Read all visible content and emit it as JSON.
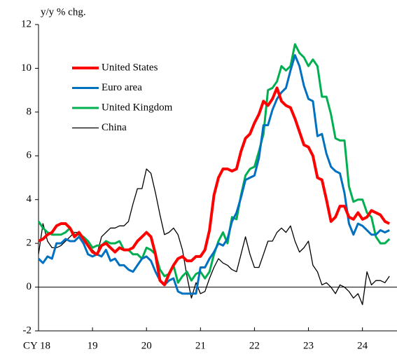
{
  "chart_data": {
    "type": "line",
    "subtitle": "y/y % chg.",
    "x": [
      18,
      18.083,
      18.167,
      18.25,
      18.333,
      18.417,
      18.5,
      18.583,
      18.667,
      18.75,
      18.833,
      18.917,
      19,
      19.083,
      19.167,
      19.25,
      19.333,
      19.417,
      19.5,
      19.583,
      19.667,
      19.75,
      19.833,
      19.917,
      20,
      20.083,
      20.167,
      20.25,
      20.333,
      20.417,
      20.5,
      20.583,
      20.667,
      20.75,
      20.833,
      20.917,
      21,
      21.083,
      21.167,
      21.25,
      21.333,
      21.417,
      21.5,
      21.583,
      21.667,
      21.75,
      21.833,
      21.917,
      22,
      22.083,
      22.167,
      22.25,
      22.333,
      22.417,
      22.5,
      22.583,
      22.667,
      22.75,
      22.833,
      22.917,
      23,
      23.083,
      23.167,
      23.25,
      23.333,
      23.417,
      23.5,
      23.583,
      23.667,
      23.75,
      23.833,
      23.917,
      24,
      24.083,
      24.167,
      24.25,
      24.333,
      24.417,
      24.5
    ],
    "series": [
      {
        "name": "United States",
        "color": "#ff0000",
        "values": [
          2.1,
          2.2,
          2.4,
          2.5,
          2.8,
          2.9,
          2.9,
          2.7,
          2.3,
          2.5,
          2.2,
          1.9,
          1.6,
          1.5,
          1.9,
          2.0,
          1.8,
          1.6,
          1.8,
          1.7,
          1.7,
          1.8,
          2.1,
          2.3,
          2.5,
          2.3,
          1.5,
          0.3,
          0.1,
          0.6,
          1.0,
          1.3,
          1.4,
          1.2,
          1.2,
          1.4,
          1.4,
          1.7,
          2.6,
          4.2,
          5.0,
          5.4,
          5.4,
          5.3,
          5.4,
          6.2,
          6.8,
          7.0,
          7.5,
          7.9,
          8.5,
          8.3,
          8.6,
          9.1,
          8.5,
          8.3,
          8.2,
          7.7,
          7.1,
          6.5,
          6.4,
          6.0,
          5.0,
          4.9,
          4.0,
          3.0,
          3.2,
          3.7,
          3.7,
          3.2,
          3.1,
          3.4,
          3.1,
          3.2,
          3.5,
          3.4,
          3.3,
          3.0,
          2.9
        ]
      },
      {
        "name": "Euro area",
        "color": "#0070c0",
        "values": [
          1.3,
          1.1,
          1.4,
          1.3,
          2.0,
          2.0,
          2.2,
          2.1,
          2.1,
          2.3,
          2.0,
          1.5,
          1.4,
          1.5,
          1.4,
          1.7,
          1.2,
          1.3,
          1.0,
          1.0,
          0.8,
          0.7,
          1.0,
          1.3,
          1.4,
          1.2,
          0.7,
          0.3,
          0.1,
          0.3,
          0.4,
          -0.2,
          -0.3,
          -0.3,
          -0.3,
          -0.3,
          0.9,
          0.9,
          1.3,
          1.6,
          2.0,
          1.9,
          2.2,
          3.0,
          3.4,
          4.1,
          4.9,
          5.0,
          5.1,
          5.9,
          7.4,
          7.4,
          8.1,
          8.6,
          8.9,
          9.1,
          9.9,
          10.6,
          10.1,
          9.2,
          8.6,
          8.5,
          6.9,
          7.0,
          6.1,
          5.5,
          5.3,
          5.2,
          4.3,
          2.9,
          2.4,
          2.9,
          2.8,
          2.6,
          2.4,
          2.4,
          2.6,
          2.5,
          2.6
        ]
      },
      {
        "name": "United Kingdom",
        "color": "#00b050",
        "values": [
          3.0,
          2.7,
          2.5,
          2.4,
          2.4,
          2.4,
          2.5,
          2.7,
          2.4,
          2.4,
          2.3,
          2.1,
          1.8,
          1.9,
          1.9,
          2.1,
          2.0,
          2.0,
          2.1,
          1.7,
          1.7,
          1.5,
          1.5,
          1.3,
          1.8,
          1.7,
          1.5,
          0.8,
          0.5,
          0.6,
          1.0,
          0.2,
          0.5,
          0.7,
          0.3,
          0.6,
          0.7,
          0.4,
          0.7,
          1.5,
          2.1,
          2.5,
          2.0,
          3.2,
          3.1,
          4.2,
          5.1,
          5.4,
          5.5,
          6.2,
          7.0,
          9.0,
          9.1,
          9.4,
          10.1,
          9.9,
          10.1,
          11.1,
          10.7,
          10.5,
          10.1,
          10.4,
          10.1,
          8.7,
          8.7,
          7.9,
          6.8,
          6.7,
          6.7,
          4.6,
          3.9,
          4.0,
          4.0,
          3.4,
          3.2,
          2.3,
          2.0,
          2.0,
          2.2
        ]
      },
      {
        "name": "China",
        "color": "#000000",
        "values": [
          1.5,
          2.9,
          2.1,
          1.8,
          1.8,
          1.9,
          2.1,
          2.3,
          2.5,
          2.5,
          2.2,
          1.9,
          1.7,
          1.5,
          2.3,
          2.5,
          2.7,
          2.7,
          2.8,
          2.8,
          3.0,
          3.8,
          4.5,
          4.5,
          5.4,
          5.2,
          4.3,
          3.3,
          2.4,
          2.5,
          2.7,
          2.4,
          1.7,
          0.5,
          -0.5,
          0.2,
          -0.3,
          -0.2,
          0.4,
          0.9,
          1.3,
          1.1,
          1.0,
          0.8,
          0.7,
          1.5,
          2.3,
          1.5,
          0.9,
          0.9,
          1.5,
          2.1,
          2.1,
          2.5,
          2.7,
          2.5,
          2.8,
          2.1,
          1.6,
          1.8,
          2.1,
          1.0,
          0.7,
          0.1,
          0.2,
          0.0,
          -0.3,
          0.1,
          0.0,
          -0.2,
          -0.5,
          -0.3,
          -0.8,
          0.7,
          0.1,
          0.3,
          0.3,
          0.2,
          0.5
        ]
      }
    ],
    "xlim": [
      18,
      24.64
    ],
    "xticks": [
      {
        "value": 18,
        "label": "CY 18"
      },
      19,
      20,
      21,
      22,
      23,
      24
    ],
    "ylim": [
      -2,
      12
    ],
    "yticks": [
      -2,
      0,
      2,
      4,
      6,
      8,
      10,
      12
    ],
    "legend": "upper left"
  }
}
